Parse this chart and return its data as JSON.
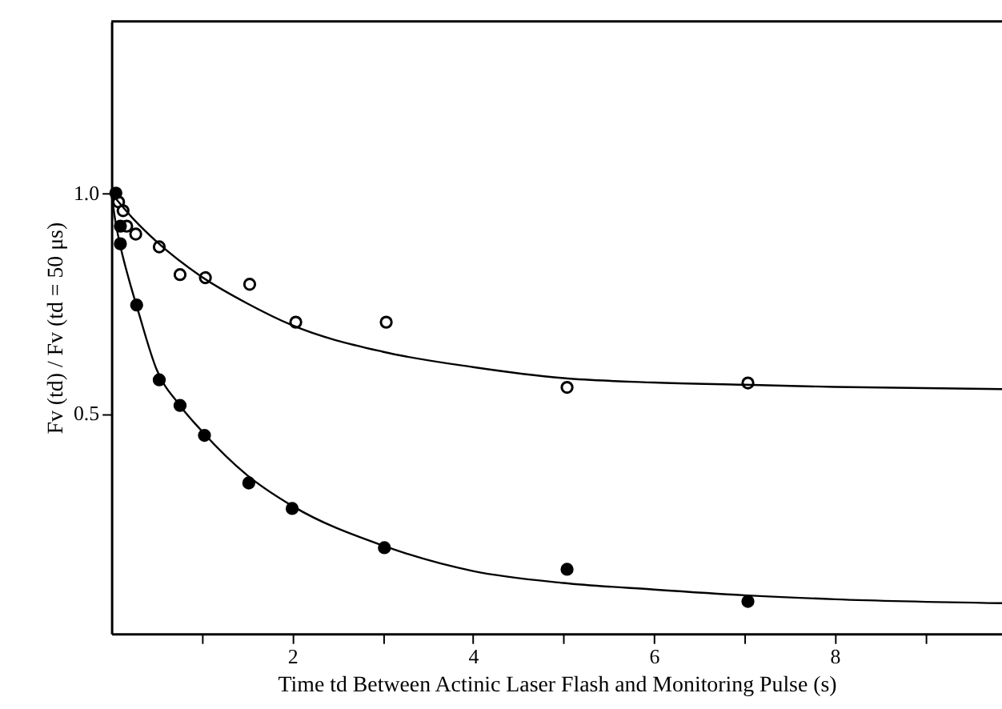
{
  "chart_data": {
    "type": "scatter",
    "xlabel": "Time td Between Actinic Laser Flash and Monitoring Pulse (s)",
    "ylabel": "Fv (td) / Fv (td = 50 μs)",
    "xlim": [
      0,
      9.85
    ],
    "xticks": [
      {
        "value": 1,
        "label": null
      },
      2,
      {
        "value": 3,
        "label": null
      },
      4,
      {
        "value": 5,
        "label": null
      },
      6,
      {
        "value": 7,
        "label": null
      },
      8,
      {
        "value": 9,
        "label": null
      }
    ],
    "ylim": [
      0,
      1.39
    ],
    "yticks": [
      {
        "value": 0.5,
        "label": "0.5"
      },
      {
        "value": 1.0,
        "label": "1.0"
      }
    ],
    "series": [
      {
        "color": "#ffffff",
        "marker": "circle",
        "x": [
          0.08,
          0.13,
          0.17,
          0.27,
          0.53,
          0.76,
          1.04,
          1.53,
          2.04,
          3.04,
          5.04,
          7.04
        ],
        "values": [
          0.98,
          0.96,
          0.925,
          0.907,
          0.878,
          0.815,
          0.808,
          0.793,
          0.707,
          0.707,
          0.559,
          0.569
        ]
      },
      {
        "color": "#000000",
        "marker": "circle",
        "x": [
          0.05,
          0.1,
          0.1,
          0.28,
          0.53,
          0.76,
          1.03,
          1.52,
          2.0,
          3.02,
          5.04,
          7.04
        ],
        "values": [
          1.0,
          0.925,
          0.885,
          0.746,
          0.576,
          0.518,
          0.45,
          0.342,
          0.284,
          0.195,
          0.146,
          0.073
        ]
      },
      {
        "type": "line",
        "color": "#000000",
        "marker": "none",
        "line_style": "solid",
        "x": [
          0,
          0.25,
          0.5,
          1,
          1.5,
          2,
          3,
          4,
          5,
          6,
          7,
          8,
          9.85
        ],
        "values": [
          1.0,
          0.94,
          0.89,
          0.81,
          0.75,
          0.7,
          0.64,
          0.605,
          0.58,
          0.57,
          0.565,
          0.56,
          0.555
        ]
      },
      {
        "type": "line",
        "color": "#000000",
        "marker": "none",
        "line_style": "solid",
        "x": [
          0,
          0.05,
          0.1,
          0.2,
          0.3,
          0.5,
          0.75,
          1,
          1.5,
          2,
          3,
          4,
          5,
          6,
          7,
          8,
          9.85
        ],
        "values": [
          1.0,
          0.93,
          0.88,
          0.8,
          0.73,
          0.6,
          0.52,
          0.46,
          0.36,
          0.29,
          0.2,
          0.142,
          0.115,
          0.1,
          0.087,
          0.078,
          0.069
        ]
      }
    ]
  }
}
